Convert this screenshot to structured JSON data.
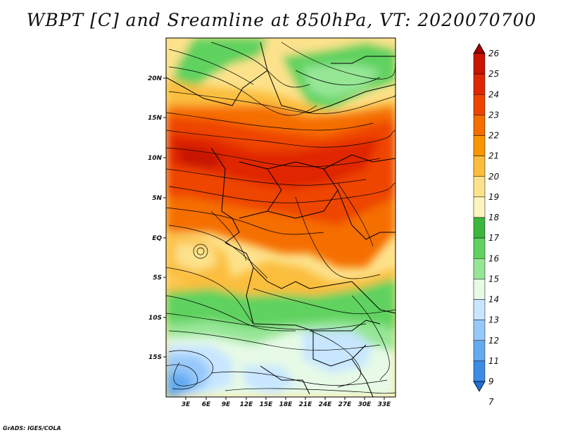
{
  "title": "WBPT [C] and Sreamline at 850hPa, VT: 2020070700",
  "credit": "GrADS: IGES/COLA",
  "map": {
    "lon_labels": [
      "3E",
      "6E",
      "9E",
      "12E",
      "15E",
      "18E",
      "21E",
      "24E",
      "27E",
      "30E",
      "33E"
    ],
    "lat_labels": [
      "20N",
      "15N",
      "10N",
      "5N",
      "EQ",
      "5S",
      "10S",
      "15S"
    ],
    "lat_range": [
      "20S",
      "24N"
    ],
    "lon_range": [
      "0E",
      "34E"
    ]
  },
  "colorbar": {
    "levels": [
      "26",
      "25",
      "24",
      "23",
      "22",
      "21",
      "20",
      "19",
      "18",
      "17",
      "16",
      "15",
      "14",
      "13",
      "12",
      "11",
      "9",
      "7"
    ],
    "colors": [
      "#a00000",
      "#c81400",
      "#e02800",
      "#ee4400",
      "#f56e00",
      "#fa9600",
      "#fbbe3c",
      "#fde28c",
      "#fff4c0",
      "#3cb63c",
      "#5fd25f",
      "#96e696",
      "#e6fae6",
      "#c8e6ff",
      "#96c8fa",
      "#64aaf0",
      "#3c8ce6",
      "#1e6edc"
    ]
  },
  "colors": {
    "background": "#ffffff",
    "frame": "#000000",
    "streamline": "#000000"
  }
}
